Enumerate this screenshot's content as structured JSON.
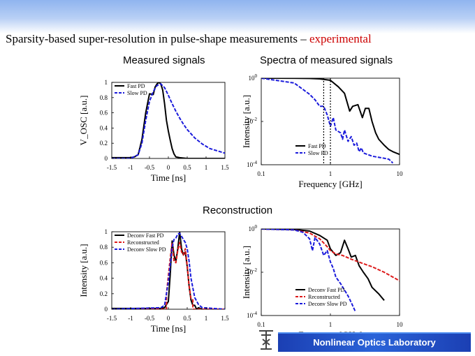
{
  "slide": {
    "title_main": "Sparsity-based super-resolution in pulse-shape measurements – ",
    "title_accent": "experimental",
    "subtitle_measured": "Measured signals",
    "subtitle_spectra": "Spectra of measured signals",
    "subtitle_reconstruction": "Reconstruction",
    "footer": "Nonlinear Optics Laboratory"
  },
  "colors": {
    "fast": "#000000",
    "slow": "#1a1adb",
    "recon": "#dd1a1a",
    "accent": "#cc0000"
  },
  "chart_data": [
    {
      "id": "measured",
      "type": "line",
      "xlabel": "Time [ns]",
      "ylabel": "V_OSC [a.u.]",
      "xlim": [
        -1.5,
        1.5
      ],
      "ylim": [
        0,
        1
      ],
      "xticks": [
        "-1.5",
        "-1",
        "-0.5",
        "0",
        "0.5",
        "1",
        "1.5"
      ],
      "yticks": [
        "0",
        "0.2",
        "0.4",
        "0.6",
        "0.8",
        "1"
      ],
      "legend": "top-left",
      "series": [
        {
          "name": "Fast PD",
          "style": "solid",
          "color": "#000000",
          "x": [
            -1.5,
            -1.0,
            -0.9,
            -0.8,
            -0.7,
            -0.6,
            -0.5,
            -0.4,
            -0.35,
            -0.3,
            -0.25,
            -0.2,
            -0.15,
            -0.1,
            -0.05,
            0.0,
            0.05,
            0.1,
            0.15,
            0.2,
            0.3,
            0.5,
            1.0,
            1.5
          ],
          "y": [
            0.01,
            0.01,
            0.02,
            0.05,
            0.25,
            0.6,
            0.85,
            0.84,
            0.94,
            0.98,
            1.0,
            0.98,
            0.9,
            0.72,
            0.5,
            0.36,
            0.24,
            0.13,
            0.06,
            0.02,
            0.01,
            0.0,
            0.0,
            0.0
          ]
        },
        {
          "name": "Slow PD",
          "style": "dashed",
          "color": "#1a1adb",
          "x": [
            -1.5,
            -1.0,
            -0.8,
            -0.7,
            -0.6,
            -0.5,
            -0.4,
            -0.3,
            -0.2,
            -0.1,
            0.0,
            0.1,
            0.2,
            0.3,
            0.4,
            0.5,
            0.7,
            0.9,
            1.1,
            1.3,
            1.5
          ],
          "y": [
            0.0,
            0.0,
            0.05,
            0.2,
            0.5,
            0.75,
            0.88,
            0.96,
            0.98,
            0.93,
            0.83,
            0.72,
            0.62,
            0.53,
            0.45,
            0.38,
            0.27,
            0.19,
            0.13,
            0.1,
            0.07
          ]
        }
      ]
    },
    {
      "id": "spectra",
      "type": "line",
      "xlabel": "Frequency [GHz]",
      "ylabel": "Intensity [a.u.]",
      "xscale": "log",
      "yscale": "log",
      "xlim": [
        0.1,
        10
      ],
      "ylim": [
        0.0001,
        1
      ],
      "xticks": [
        "0.1",
        "1",
        "10"
      ],
      "yticks": [
        "10^0",
        "10^-2",
        "10^-4"
      ],
      "legend": "bottom-center",
      "series": [
        {
          "name": "Fast PD",
          "style": "solid",
          "color": "#000000",
          "x": [
            0.1,
            0.3,
            0.5,
            0.7,
            1.0,
            1.3,
            1.6,
            1.9,
            2.1,
            2.5,
            2.9,
            3.2,
            3.6,
            4.0,
            4.5,
            5.0,
            6.0,
            7.0,
            8.0,
            10.0
          ],
          "y": [
            1.0,
            0.99,
            0.97,
            0.93,
            0.8,
            0.4,
            0.2,
            0.03,
            0.05,
            0.06,
            0.015,
            0.04,
            0.04,
            0.01,
            0.003,
            0.0015,
            0.0008,
            0.0005,
            0.0004,
            0.0003
          ]
        },
        {
          "name": "Slow PD",
          "style": "dashed",
          "color": "#1a1adb",
          "x": [
            0.1,
            0.3,
            0.5,
            0.6,
            0.7,
            0.8,
            0.9,
            1.0,
            1.1,
            1.2,
            1.4,
            1.5,
            1.6,
            1.8,
            2.0,
            2.2,
            2.4,
            2.6,
            2.8,
            3.0,
            4.0,
            5.0,
            6.0,
            7.0,
            8.0
          ],
          "y": [
            1.0,
            0.6,
            0.18,
            0.1,
            0.05,
            0.05,
            0.02,
            0.006,
            0.015,
            0.004,
            0.003,
            0.0015,
            0.004,
            0.0012,
            0.002,
            0.0008,
            0.001,
            0.0004,
            0.0006,
            0.00035,
            0.00025,
            0.00022,
            0.0002,
            0.00018,
            0.00012
          ]
        }
      ]
    },
    {
      "id": "reconstruction",
      "type": "line",
      "xlabel": "Time [ns]",
      "ylabel": "Intensity [a.u.]",
      "xlim": [
        -1.5,
        1.5
      ],
      "ylim": [
        0,
        1
      ],
      "xticks": [
        "-1.5",
        "-1",
        "-0.5",
        "0",
        "0.5",
        "1",
        "1.5"
      ],
      "yticks": [
        "0",
        "0.2",
        "0.4",
        "0.6",
        "0.8",
        "1"
      ],
      "legend": "top-left",
      "series": [
        {
          "name": "Deconv Fast PD",
          "style": "solid",
          "color": "#000000",
          "x": [
            -1.5,
            -0.2,
            -0.1,
            0.0,
            0.05,
            0.1,
            0.15,
            0.2,
            0.25,
            0.3,
            0.35,
            0.4,
            0.45,
            0.5,
            0.55,
            0.6,
            0.65,
            0.7,
            0.75,
            0.8,
            0.9,
            1.5
          ],
          "y": [
            0.01,
            0.01,
            0.02,
            0.1,
            0.45,
            0.88,
            0.7,
            0.62,
            0.78,
            1.0,
            0.78,
            0.7,
            0.74,
            0.55,
            0.3,
            0.12,
            0.05,
            0.05,
            0.0,
            0.02,
            0.0,
            0.0
          ]
        },
        {
          "name": "Reconstructed",
          "style": "dashed",
          "color": "#dd1a1a",
          "x": [
            -1.5,
            -0.05,
            -0.05,
            0.05,
            0.1,
            0.15,
            0.2,
            0.25,
            0.3,
            0.35,
            0.4,
            0.45,
            0.5,
            0.55,
            0.6,
            0.65,
            0.65,
            1.5
          ],
          "y": [
            0.0,
            0.0,
            0.2,
            0.66,
            0.86,
            0.62,
            0.6,
            0.76,
            0.86,
            0.74,
            0.7,
            0.78,
            0.56,
            0.3,
            0.14,
            0.12,
            0.0,
            0.0
          ]
        },
        {
          "name": "Deconv Slow PD",
          "style": "dashed",
          "color": "#1a1adb",
          "x": [
            -1.5,
            -0.2,
            -0.1,
            0.0,
            0.1,
            0.15,
            0.2,
            0.25,
            0.3,
            0.35,
            0.4,
            0.45,
            0.5,
            0.55,
            0.6,
            0.7,
            0.8,
            0.9,
            1.5
          ],
          "y": [
            0.0,
            0.02,
            0.05,
            0.35,
            0.8,
            0.9,
            0.92,
            0.97,
            0.98,
            0.94,
            0.9,
            0.86,
            0.78,
            0.62,
            0.4,
            0.15,
            0.06,
            0.02,
            0.0
          ]
        }
      ]
    },
    {
      "id": "reconstruction-spectra",
      "type": "line",
      "xlabel": "Frequency [GHz]",
      "ylabel": "Intensity [a.u.]",
      "xscale": "log",
      "yscale": "log",
      "xlim": [
        0.1,
        10
      ],
      "ylim": [
        0.0001,
        1
      ],
      "xticks": [
        "0.1",
        "1",
        "10"
      ],
      "yticks": [
        "10^0",
        "10^-2",
        "10^-4"
      ],
      "legend": "bottom-center",
      "series": [
        {
          "name": "Deconv Fast PD",
          "style": "solid",
          "color": "#000000",
          "x": [
            0.1,
            0.3,
            0.5,
            0.7,
            0.9,
            1.0,
            1.2,
            1.4,
            1.6,
            1.8,
            2.0,
            2.3,
            2.6,
            3.0,
            3.5,
            4.0,
            5.0,
            6.0
          ],
          "y": [
            1.0,
            0.95,
            0.8,
            0.5,
            0.3,
            0.12,
            0.06,
            0.08,
            0.3,
            0.12,
            0.05,
            0.06,
            0.02,
            0.01,
            0.005,
            0.002,
            0.001,
            0.0005
          ]
        },
        {
          "name": "Reconstructed",
          "style": "dashed",
          "color": "#dd1a1a",
          "x": [
            0.1,
            0.3,
            0.5,
            0.7,
            0.9,
            1.0,
            1.2,
            1.5,
            2.0,
            3.0,
            4.0,
            6.0,
            10.0
          ],
          "y": [
            1.0,
            0.9,
            0.65,
            0.35,
            0.15,
            0.1,
            0.07,
            0.06,
            0.04,
            0.025,
            0.018,
            0.01,
            0.004
          ]
        },
        {
          "name": "Deconv Slow PD",
          "style": "dashed",
          "color": "#1a1adb",
          "x": [
            0.1,
            0.3,
            0.4,
            0.5,
            0.55,
            0.6,
            0.7,
            0.8,
            0.9,
            1.0,
            1.1,
            1.2,
            1.4,
            1.6,
            1.8,
            2.0,
            2.3
          ],
          "y": [
            1.0,
            0.9,
            0.7,
            0.35,
            0.1,
            0.4,
            0.2,
            0.06,
            0.1,
            0.03,
            0.015,
            0.006,
            0.003,
            0.0015,
            0.0008,
            0.0004,
            0.00015
          ]
        }
      ]
    }
  ]
}
